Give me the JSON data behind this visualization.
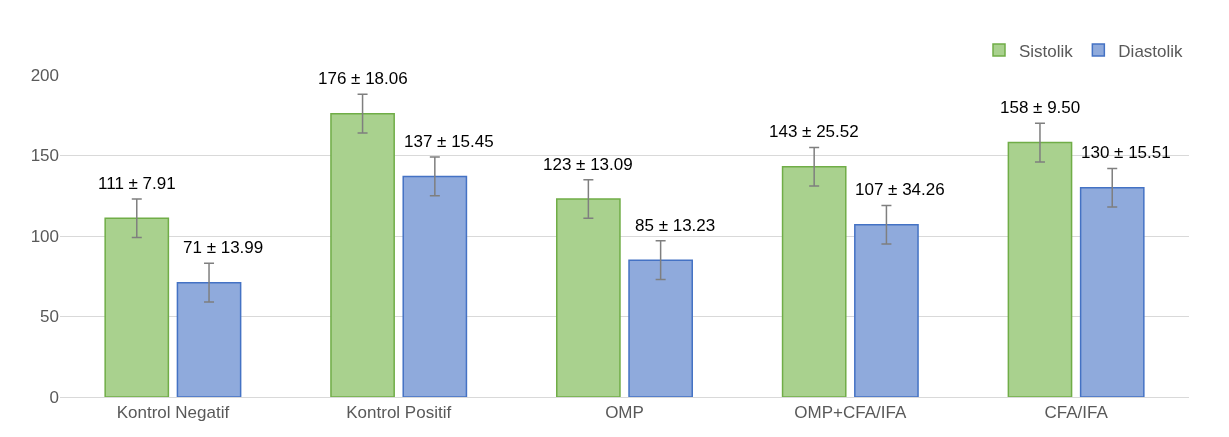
{
  "chart_data": {
    "type": "bar",
    "categories": [
      "Kontrol Negatif",
      "Kontrol Positif",
      "OMP",
      "OMP+CFA/IFA",
      "CFA/IFA"
    ],
    "series": [
      {
        "name": "Sistolik",
        "color": "#a9d18e",
        "values": [
          111,
          176,
          123,
          143,
          158
        ],
        "errors": [
          12,
          12,
          12,
          12,
          12
        ],
        "value_labels": [
          "111 ± 7.91",
          "176 ± 18.06",
          "123 ± 13.09",
          "143 ± 25.52",
          "158 ± 9.50"
        ]
      },
      {
        "name": "Diastolik",
        "color": "#8faadc",
        "values": [
          71,
          137,
          85,
          107,
          130
        ],
        "errors": [
          12,
          12,
          12,
          12,
          12
        ],
        "value_labels": [
          "71 ± 13.99",
          "137 ± 15.45",
          "85 ± 13.23",
          "107 ± 34.26",
          "130 ± 15.51"
        ]
      }
    ],
    "ylim": [
      0,
      200
    ],
    "yticks": [
      0,
      50,
      100,
      150,
      200
    ],
    "grid": "y",
    "legend": "top right"
  }
}
